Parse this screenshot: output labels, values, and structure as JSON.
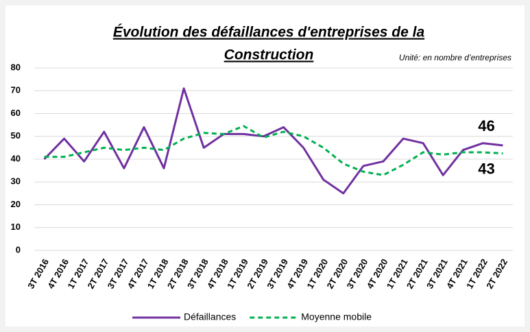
{
  "chart_data": {
    "type": "line",
    "title": [
      "Évolution des défaillances d'entreprises de la",
      "Construction"
    ],
    "subtitle": "Unité: en nombre d’entreprises",
    "categories": [
      "3T 2016",
      "4T 2016",
      "1T 2017",
      "2T 2017",
      "3T 2017",
      "4T 2017",
      "1T 2018",
      "2T 2018",
      "3T 2018",
      "4T 2018",
      "1T 2019",
      "2T 2019",
      "3T 2019",
      "4T 2019",
      "1T 2020",
      "2T 2020",
      "3T 2020",
      "4T 2020",
      "1T 2021",
      "2T 2021",
      "3T 2021",
      "4T 2021",
      "1T 2022",
      "2T 2022"
    ],
    "series": [
      {
        "name": "Défaillances",
        "color": "#7030a0",
        "dash": false,
        "values": [
          40,
          49,
          39,
          52,
          36,
          54,
          36,
          71,
          45,
          51,
          51,
          50,
          54,
          45,
          31,
          25,
          37,
          39,
          49,
          47,
          33,
          44,
          47,
          46
        ]
      },
      {
        "name": "Moyenne mobile",
        "color": "#00b050",
        "dash": true,
        "values": [
          41,
          41,
          43,
          45,
          44,
          45,
          44,
          49,
          51.5,
          51,
          54.5,
          49.5,
          52,
          50,
          45,
          38,
          34.5,
          33,
          37.5,
          43,
          42,
          43,
          43,
          42.5
        ]
      }
    ],
    "annotations": [
      "46",
      "43"
    ],
    "ylim": [
      0,
      80
    ],
    "yticks": [
      0,
      10,
      20,
      30,
      40,
      50,
      60,
      70,
      80
    ],
    "grid": true,
    "legend": "bottom"
  }
}
